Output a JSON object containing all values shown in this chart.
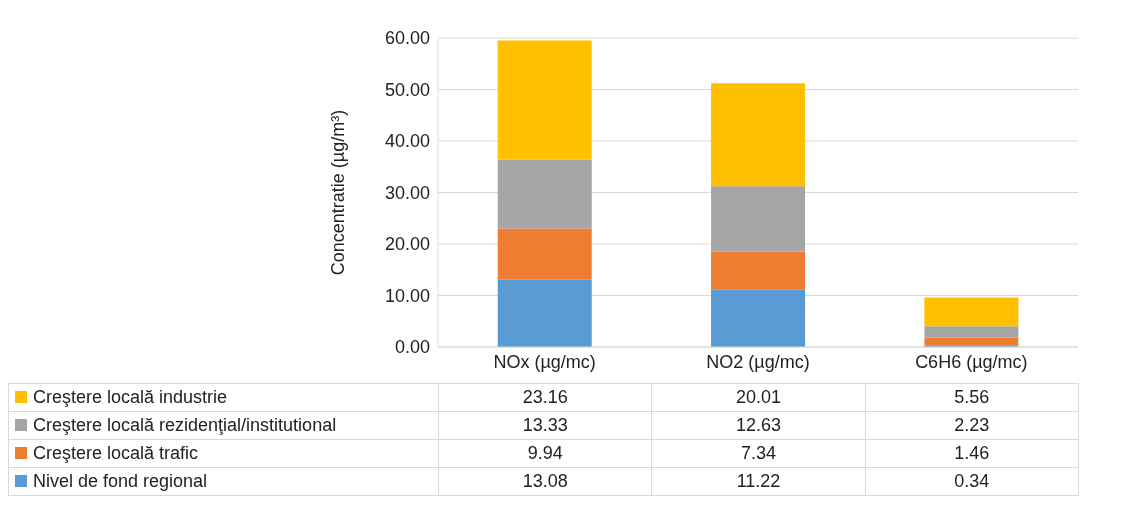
{
  "chart_data": {
    "type": "bar",
    "stacked": true,
    "ylabel": "Concentratie (µg/m³)",
    "categories": [
      "NOx (µg/mc)",
      "NO2 (µg/mc)",
      "C6H6 (µg/mc)"
    ],
    "series": [
      {
        "name": "Nivel de fond regional",
        "color": "#5b9bd5",
        "values": [
          13.08,
          11.22,
          0.34
        ]
      },
      {
        "name": "Creştere locală trafic",
        "color": "#ed7d31",
        "values": [
          9.94,
          7.34,
          1.46
        ]
      },
      {
        "name": "Creştere locală rezidenţial/institutional",
        "color": "#a5a5a5",
        "values": [
          13.33,
          12.63,
          2.23
        ]
      },
      {
        "name": "Creştere locală industrie",
        "color": "#ffc000",
        "values": [
          23.16,
          20.01,
          5.56
        ]
      }
    ],
    "ylim": [
      0,
      60
    ],
    "yticks": [
      {
        "value": 0,
        "label": "0.00"
      },
      {
        "value": 10,
        "label": "10.00"
      },
      {
        "value": 20,
        "label": "20.00"
      },
      {
        "value": 30,
        "label": "30.00"
      },
      {
        "value": 40,
        "label": "40.00"
      },
      {
        "value": 50,
        "label": "50.00"
      },
      {
        "value": 60,
        "label": "60.00"
      }
    ],
    "grid": "y",
    "legend": "bottom",
    "data_labels": true
  }
}
